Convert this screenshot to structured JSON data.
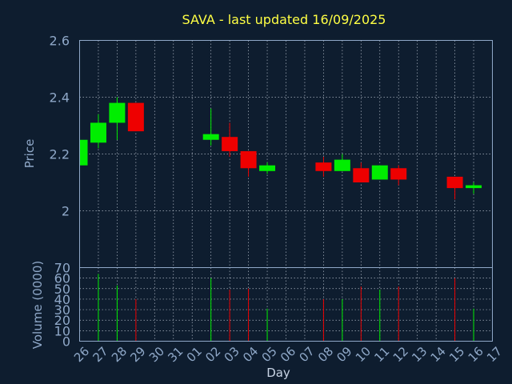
{
  "chart_data": {
    "type": "candlestick",
    "title": "SAVA - last updated 16/09/2025",
    "xlabel": "Day",
    "ylabel_price": "Price",
    "ylabel_volume": "Volume (0000)",
    "x_ticks": [
      "26",
      "27",
      "28",
      "29",
      "30",
      "31",
      "01",
      "02",
      "03",
      "04",
      "05",
      "06",
      "07",
      "08",
      "09",
      "10",
      "11",
      "12",
      "13",
      "14",
      "15",
      "16",
      "17"
    ],
    "price_ylim": [
      1.8,
      2.6
    ],
    "price_ticks": [
      "2.6",
      "2.4",
      "2.2",
      "2"
    ],
    "volume_ylim": [
      0,
      70
    ],
    "volume_ticks": [
      "70",
      "60",
      "50",
      "40",
      "30",
      "20",
      "10",
      "0"
    ],
    "grid": true,
    "colors": {
      "up": "#00ee00",
      "down": "#ee0000",
      "title": "#ffff44",
      "axis": "#8fa8c8",
      "background": "#0e1d2f"
    },
    "candles": [
      {
        "day": "26",
        "open": 2.16,
        "high": 2.25,
        "low": 2.16,
        "close": 2.25,
        "volume": null
      },
      {
        "day": "27",
        "open": 2.24,
        "high": 2.34,
        "low": 2.22,
        "close": 2.31,
        "volume": 64
      },
      {
        "day": "28",
        "open": 2.31,
        "high": 2.4,
        "low": 2.25,
        "close": 2.38,
        "volume": 53
      },
      {
        "day": "29",
        "open": 2.38,
        "high": 2.38,
        "low": 2.28,
        "close": 2.28,
        "volume": 40
      },
      {
        "day": "02",
        "open": 2.25,
        "high": 2.36,
        "low": 2.23,
        "close": 2.27,
        "volume": 60
      },
      {
        "day": "03",
        "open": 2.26,
        "high": 2.31,
        "low": 2.19,
        "close": 2.21,
        "volume": 49
      },
      {
        "day": "04",
        "open": 2.21,
        "high": 2.21,
        "low": 2.12,
        "close": 2.15,
        "volume": 50
      },
      {
        "day": "05",
        "open": 2.14,
        "high": 2.17,
        "low": 2.13,
        "close": 2.16,
        "volume": 31
      },
      {
        "day": "08",
        "open": 2.17,
        "high": 2.19,
        "low": 2.12,
        "close": 2.14,
        "volume": 40
      },
      {
        "day": "09",
        "open": 2.14,
        "high": 2.2,
        "low": 2.14,
        "close": 2.18,
        "volume": 40
      },
      {
        "day": "10",
        "open": 2.15,
        "high": 2.17,
        "low": 2.1,
        "close": 2.1,
        "volume": 52
      },
      {
        "day": "11",
        "open": 2.11,
        "high": 2.16,
        "low": 2.11,
        "close": 2.16,
        "volume": 49
      },
      {
        "day": "12",
        "open": 2.15,
        "high": 2.16,
        "low": 2.09,
        "close": 2.11,
        "volume": 52
      },
      {
        "day": "15",
        "open": 2.12,
        "high": 2.12,
        "low": 2.04,
        "close": 2.08,
        "volume": 60
      },
      {
        "day": "16",
        "open": 2.08,
        "high": 2.1,
        "low": 2.06,
        "close": 2.09,
        "volume": 31
      }
    ]
  }
}
